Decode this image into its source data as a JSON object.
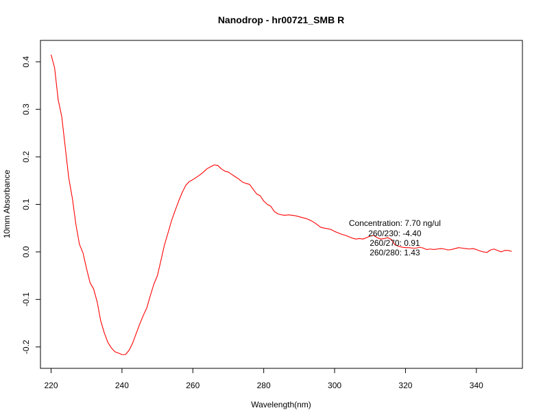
{
  "chart_data": {
    "type": "line",
    "title": "Nanodrop - hr00721_SMB R",
    "xlabel": "Wavelength(nm)",
    "ylabel": "10mm Absorbance",
    "xlim": [
      217,
      353
    ],
    "ylim": [
      -0.245,
      0.445
    ],
    "xticks": [
      220,
      240,
      260,
      280,
      300,
      320,
      340
    ],
    "yticks": [
      -0.2,
      -0.1,
      0.0,
      0.1,
      0.2,
      0.3,
      0.4
    ],
    "ytick_labels": [
      "-0.2",
      "-0.1",
      "0.0",
      "0.1",
      "0.2",
      "0.3",
      "0.4"
    ],
    "grid": false,
    "legend": "none",
    "series": [
      {
        "color": "#ff0000",
        "x": [
          220,
          221,
          222,
          223,
          224,
          225,
          226,
          227,
          228,
          229,
          230,
          231,
          232,
          233,
          234,
          235,
          236,
          237,
          238,
          239,
          240,
          241,
          242,
          243,
          244,
          245,
          246,
          247,
          248,
          249,
          250,
          251,
          252,
          253,
          254,
          255,
          256,
          257,
          258,
          259,
          260,
          261,
          262,
          263,
          264,
          265,
          266,
          267,
          268,
          269,
          270,
          271,
          272,
          273,
          274,
          275,
          276,
          277,
          278,
          279,
          280,
          281,
          282,
          283,
          284,
          285,
          286,
          287,
          288,
          289,
          290,
          291,
          292,
          293,
          294,
          295,
          296,
          297,
          298,
          299,
          300,
          301,
          302,
          303,
          304,
          305,
          306,
          307,
          308,
          309,
          310,
          311,
          312,
          313,
          314,
          315,
          316,
          317,
          318,
          319,
          320,
          321,
          322,
          323,
          324,
          325,
          326,
          327,
          328,
          329,
          330,
          331,
          332,
          333,
          334,
          335,
          336,
          337,
          338,
          339,
          340,
          341,
          342,
          343,
          344,
          345,
          346,
          347,
          348,
          349,
          350
        ],
        "y": [
          0.415,
          0.387,
          0.32,
          0.285,
          0.22,
          0.155,
          0.113,
          0.058,
          0.016,
          -0.002,
          -0.035,
          -0.065,
          -0.078,
          -0.105,
          -0.145,
          -0.17,
          -0.19,
          -0.202,
          -0.21,
          -0.213,
          -0.216,
          -0.216,
          -0.207,
          -0.192,
          -0.172,
          -0.152,
          -0.134,
          -0.118,
          -0.092,
          -0.068,
          -0.05,
          -0.018,
          0.015,
          0.04,
          0.066,
          0.087,
          0.107,
          0.125,
          0.14,
          0.148,
          0.152,
          0.157,
          0.162,
          0.168,
          0.175,
          0.179,
          0.183,
          0.182,
          0.175,
          0.17,
          0.168,
          0.163,
          0.158,
          0.153,
          0.147,
          0.144,
          0.142,
          0.132,
          0.122,
          0.118,
          0.107,
          0.1,
          0.096,
          0.085,
          0.08,
          0.078,
          0.077,
          0.078,
          0.077,
          0.076,
          0.074,
          0.072,
          0.07,
          0.067,
          0.063,
          0.058,
          0.052,
          0.05,
          0.049,
          0.047,
          0.043,
          0.04,
          0.037,
          0.035,
          0.032,
          0.029,
          0.027,
          0.028,
          0.027,
          0.03,
          0.033,
          0.035,
          0.03,
          0.027,
          0.028,
          0.03,
          0.026,
          0.015,
          0.012,
          0.01,
          0.009,
          0.009,
          0.008,
          0.008,
          0.01,
          0.008,
          0.005,
          0.006,
          0.005,
          0.006,
          0.007,
          0.006,
          0.004,
          0.005,
          0.007,
          0.009,
          0.008,
          0.007,
          0.006,
          0.007,
          0.005,
          0.002,
          0.0,
          -0.001,
          0.004,
          0.006,
          0.003,
          0.0,
          0.003,
          0.003,
          0.001
        ]
      }
    ],
    "annotations": [
      "Concentration: 7.70 ng/ul",
      "260/230: -4.40",
      "260/270: 0.91",
      "260/280: 1.43"
    ]
  }
}
